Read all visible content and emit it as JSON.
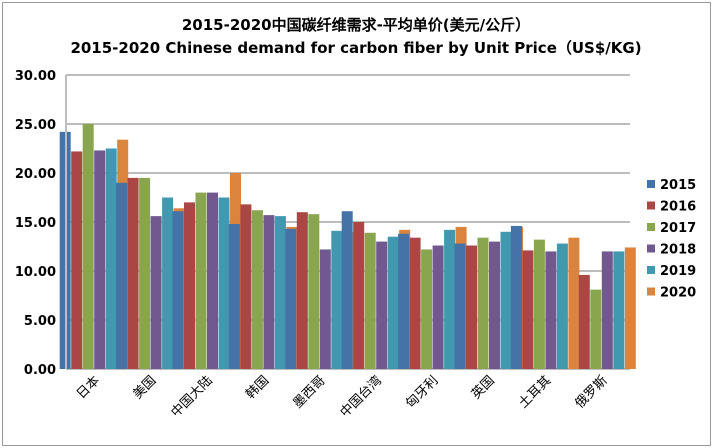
{
  "chart_data": {
    "type": "bar",
    "title": "2015-2020中国碳纤维需求-平均单价(美元/公斤）",
    "subtitle": "2015-2020 Chinese demand for carbon fiber by Unit Price（US$/KG)",
    "xlabel": "",
    "ylabel": "",
    "ylim": [
      0,
      30
    ],
    "yticks": [
      "0.00",
      "5.00",
      "10.00",
      "15.00",
      "20.00",
      "25.00",
      "30.00"
    ],
    "grid": true,
    "legend_position": "right",
    "categories": [
      "日本",
      "美国",
      "中国大陆",
      "韩国",
      "墨西哥",
      "中国台湾",
      "匈牙利",
      "英国",
      "土耳其",
      "俄罗斯"
    ],
    "series": [
      {
        "name": "2015",
        "color": "#4572A7",
        "values": [
          24.2,
          19.0,
          16.1,
          14.8,
          14.3,
          16.1,
          13.8,
          12.8,
          14.6,
          null
        ]
      },
      {
        "name": "2016",
        "color": "#AA4643",
        "values": [
          22.2,
          19.5,
          17.0,
          16.8,
          16.0,
          15.0,
          13.4,
          12.6,
          12.1,
          9.6
        ]
      },
      {
        "name": "2017",
        "color": "#89A54E",
        "values": [
          25.0,
          19.5,
          18.0,
          16.2,
          15.8,
          13.9,
          12.2,
          13.4,
          13.2,
          8.1
        ]
      },
      {
        "name": "2018",
        "color": "#71588F",
        "values": [
          22.3,
          15.6,
          18.0,
          15.7,
          12.2,
          13.0,
          12.6,
          13.0,
          12.0,
          12.0
        ]
      },
      {
        "name": "2019",
        "color": "#4198AF",
        "values": [
          22.5,
          17.5,
          17.5,
          15.6,
          14.1,
          13.5,
          14.2,
          14.0,
          12.8,
          12.0
        ]
      },
      {
        "name": "2020",
        "color": "#DB843D",
        "values": [
          23.4,
          16.4,
          20.0,
          14.5,
          14.0,
          14.2,
          14.5,
          14.5,
          13.4,
          12.4
        ]
      }
    ]
  }
}
